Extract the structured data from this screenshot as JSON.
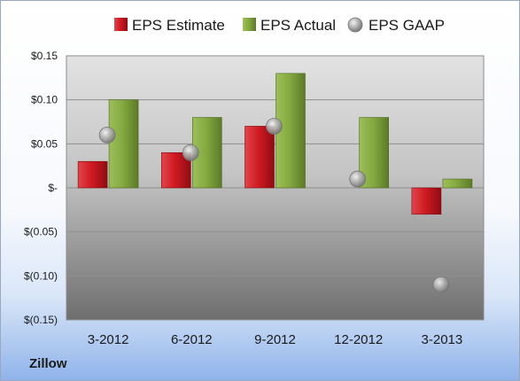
{
  "company": "Zillow",
  "chart_data": {
    "type": "bar",
    "categories": [
      "3-2012",
      "6-2012",
      "9-2012",
      "12-2012",
      "3-2013"
    ],
    "series": [
      {
        "name": "EPS Estimate",
        "kind": "bar",
        "color": "#c8141e",
        "values": [
          0.03,
          0.04,
          0.07,
          null,
          -0.03
        ]
      },
      {
        "name": "EPS Actual",
        "kind": "bar",
        "color": "#7fa23a",
        "values": [
          0.1,
          0.08,
          0.13,
          0.08,
          0.01
        ]
      },
      {
        "name": "EPS GAAP",
        "kind": "marker",
        "color": "#9a9a9a",
        "values": [
          0.06,
          0.04,
          0.07,
          0.01,
          -0.11
        ]
      }
    ],
    "y_ticks": [
      {
        "value": 0.15,
        "label": "$0.15"
      },
      {
        "value": 0.1,
        "label": "$0.10"
      },
      {
        "value": 0.05,
        "label": "$0.05"
      },
      {
        "value": 0.0,
        "label": "$-"
      },
      {
        "value": -0.05,
        "label": "$(0.05)"
      },
      {
        "value": -0.1,
        "label": "$(0.10)"
      },
      {
        "value": -0.15,
        "label": "$(0.15)"
      }
    ],
    "ylim": [
      -0.15,
      0.15
    ],
    "grid": true,
    "legend_position": "top"
  }
}
